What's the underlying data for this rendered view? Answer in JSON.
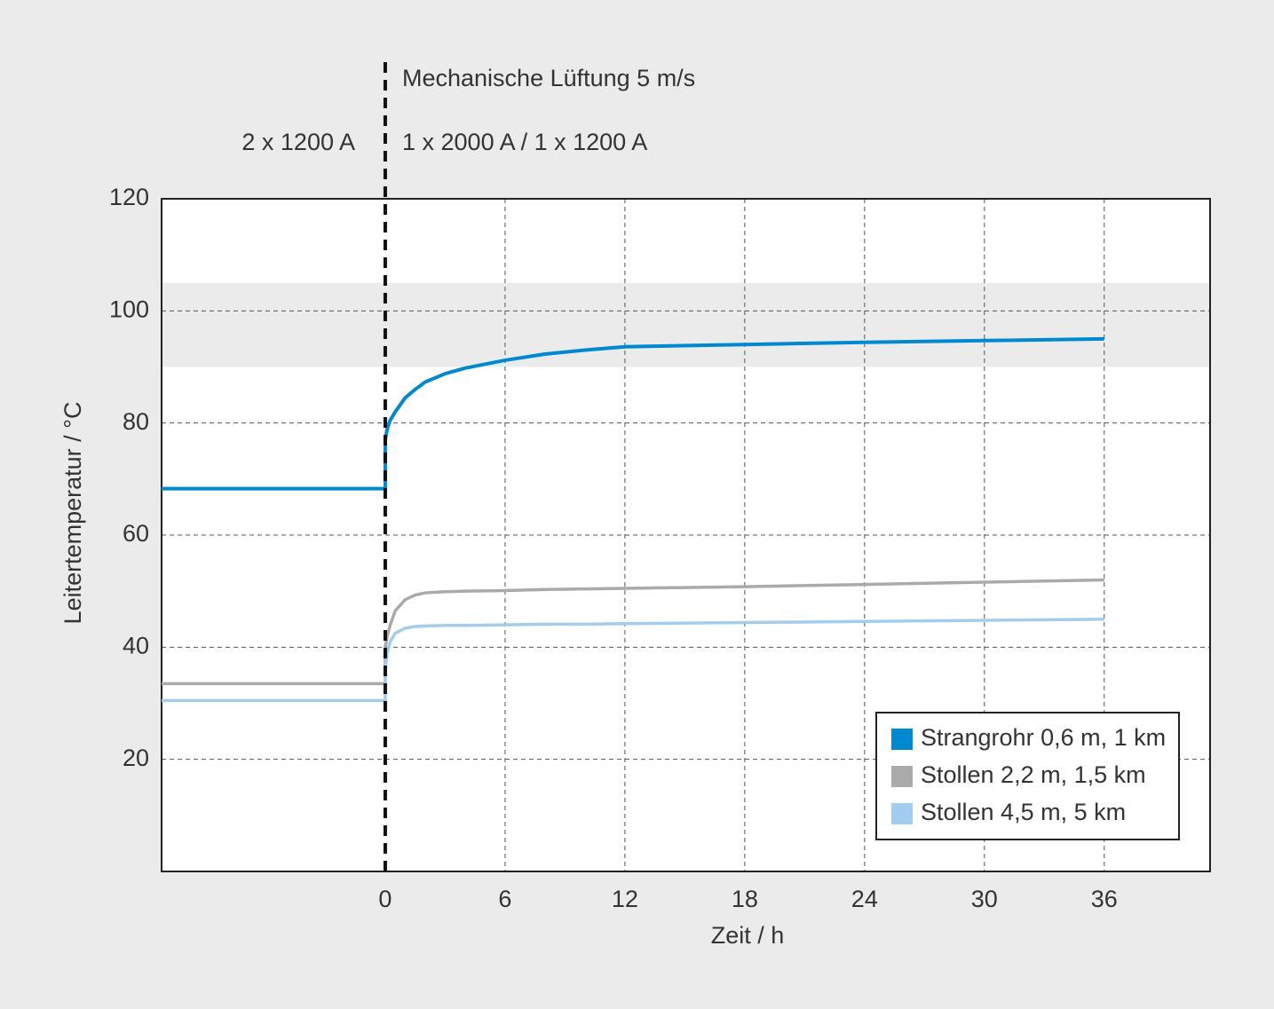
{
  "chart_data": {
    "type": "line",
    "xlabel": "Zeit / h",
    "ylabel": "Leitertemperatur / °C",
    "annotations": [
      "Mechanische Lüftung 5 m/s",
      "2 x 1200 A",
      "1 x 2000 A / 1 x 1200 A"
    ],
    "x": [
      -11.2,
      0,
      0,
      0.1,
      0.25,
      0.5,
      1,
      1.5,
      2,
      3,
      4,
      6,
      8,
      10,
      12,
      18,
      24,
      30,
      36
    ],
    "series": [
      {
        "name": "Strangrohr 0,6 m, 1 km",
        "color": "#0088d1",
        "values": [
          68.3,
          68.3,
          77,
          79,
          80.5,
          82,
          84.5,
          86,
          87.3,
          88.8,
          89.8,
          91.2,
          92.3,
          93,
          93.6,
          94,
          94.4,
          94.7,
          95
        ]
      },
      {
        "name": "Stollen 2,2 m, 1,5 km",
        "color": "#aaaaaa",
        "values": [
          33.5,
          33.5,
          40,
          42,
          44,
          46.5,
          48.5,
          49.3,
          49.7,
          49.9,
          50,
          50.1,
          50.3,
          50.4,
          50.5,
          50.8,
          51.2,
          51.6,
          52
        ]
      },
      {
        "name": "Stollen 4,5 m, 5 km",
        "color": "#a3cdee",
        "values": [
          30.5,
          30.5,
          36,
          39,
          41,
          42.5,
          43.4,
          43.7,
          43.8,
          43.9,
          43.9,
          44,
          44.1,
          44.1,
          44.2,
          44.4,
          44.6,
          44.8,
          45
        ]
      }
    ],
    "highlight_band": [
      90,
      105
    ],
    "xlim": [
      -11.2,
      41.3
    ],
    "xticks": [
      0,
      6,
      12,
      18,
      24,
      30,
      36
    ],
    "ylim": [
      0,
      120
    ],
    "yticks": [
      20,
      40,
      60,
      80,
      100,
      120
    ],
    "grid": true,
    "legend": "lower right"
  }
}
